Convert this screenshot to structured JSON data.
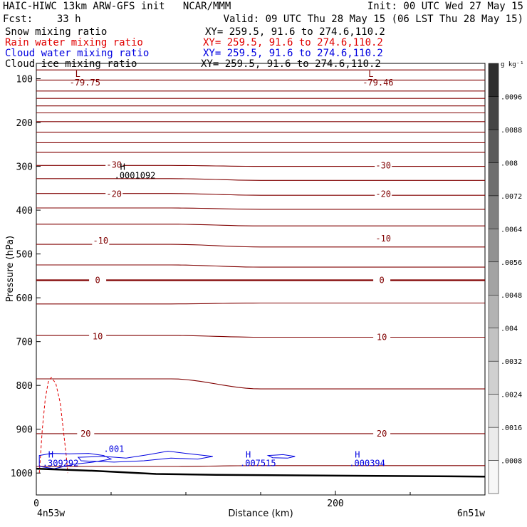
{
  "header": {
    "line1_left": "HAIC-HIWC 13km ARW-GFS init   NCAR/MMM",
    "line1_right": "Init: 00 UTC Wed 27 May 15",
    "line2_left": "Fcst:    33 h",
    "line2_right": "Valid: 09 UTC Thu 28 May 15 (06 LST Thu 28 May 15)",
    "fields": [
      {
        "name": "Snow mixing ratio",
        "xy": "XY= 259.5, 91.6 to 274.6,110.2",
        "color": "#000000"
      },
      {
        "name": "Rain water mixing ratio",
        "xy": "XY= 259.5, 91.6 to 274.6,110.2",
        "color": "#e00000"
      },
      {
        "name": "Cloud water mixing ratio",
        "xy": "XY= 259.5, 91.6 to 274.6,110.2",
        "color": "#0000e0"
      },
      {
        "name": "Cloud ice mixing ratio",
        "xy": "XY= 259.5, 91.6 to 274.6,110.2",
        "color": "#000000"
      }
    ]
  },
  "chart_data": {
    "type": "cross-section",
    "xlabel": "Distance (km)",
    "ylabel": "Pressure (hPa)",
    "x_endpoints": {
      "left": "4n53w",
      "right": "6n51w"
    },
    "xlim": [
      0,
      300
    ],
    "x_ticks": [
      0,
      200
    ],
    "ylim": [
      1050,
      65
    ],
    "y_ticks": [
      100,
      200,
      300,
      400,
      500,
      600,
      700,
      800,
      900,
      1000
    ],
    "colorbar": {
      "unit": "g kg⁻¹",
      "labels": [
        ".0008",
        ".0016",
        ".0024",
        ".0032",
        ".004",
        ".0048",
        ".0056",
        ".0064",
        ".0072",
        ".008",
        ".0088",
        ".0096"
      ],
      "colors": [
        "#f7f7f7",
        "#ebebeb",
        "#dedede",
        "#d0d0d0",
        "#c2c2c2",
        "#b3b3b3",
        "#a3a3a3",
        "#929292",
        "#808080",
        "#6e6e6e",
        "#5a5a5a",
        "#454545",
        "#2e2e2e"
      ]
    },
    "temperature_contours": [
      {
        "p": [
          80,
          80
        ]
      },
      {
        "p": [
          103,
          103
        ]
      },
      {
        "p": [
          128,
          128
        ]
      },
      {
        "p": [
          145,
          145
        ]
      },
      {
        "p": [
          162,
          162
        ]
      },
      {
        "p": [
          178,
          178
        ]
      },
      {
        "p": [
          198,
          198
        ]
      },
      {
        "p": [
          222,
          222
        ]
      },
      {
        "p": [
          246,
          246
        ]
      },
      {
        "p": [
          268,
          268
        ]
      },
      {
        "p": [
          298,
          300
        ]
      },
      {
        "p": [
          328,
          332
        ]
      },
      {
        "p": [
          362,
          366
        ]
      },
      {
        "p": [
          395,
          398
        ]
      },
      {
        "p": [
          432,
          436
        ]
      },
      {
        "p": [
          478,
          484
        ]
      },
      {
        "p": [
          525,
          530
        ]
      },
      {
        "p": [
          560,
          560
        ],
        "bold": true
      },
      {
        "p": [
          614,
          612
        ]
      },
      {
        "p": [
          686,
          690
        ]
      },
      {
        "p": [
          785,
          808
        ]
      },
      {
        "p": [
          910,
          910
        ]
      },
      {
        "p": [
          985,
          983
        ]
      }
    ],
    "temperature_labels": [
      {
        "x": 52,
        "p": 297,
        "text": "-30"
      },
      {
        "x": 232,
        "p": 298,
        "text": "-30"
      },
      {
        "x": 52,
        "p": 363,
        "text": "-20"
      },
      {
        "x": 232,
        "p": 363,
        "text": "-20"
      },
      {
        "x": 43,
        "p": 470,
        "text": "-10"
      },
      {
        "x": 232,
        "p": 465,
        "text": "-10"
      },
      {
        "x": 41,
        "p": 560,
        "text": "0"
      },
      {
        "x": 231,
        "p": 560,
        "text": "0"
      },
      {
        "x": 41,
        "p": 688,
        "text": "10"
      },
      {
        "x": 231,
        "p": 690,
        "text": "10"
      },
      {
        "x": 33,
        "p": 910,
        "text": "20"
      },
      {
        "x": 231,
        "p": 910,
        "text": "20"
      }
    ],
    "extrema": [
      {
        "type": "L",
        "x": 26,
        "p": 96,
        "value": "-79.75",
        "color": "#800000"
      },
      {
        "type": "L",
        "x": 222,
        "p": 96,
        "value": "-79.46",
        "color": "#800000"
      },
      {
        "type": "H",
        "x": 56,
        "p": 308,
        "value": ".0001092",
        "color": "#000000"
      },
      {
        "type": "H",
        "x": 8,
        "p": 965,
        "value": ".309292",
        "color": "#0000e0"
      },
      {
        "type": "H",
        "x": 140,
        "p": 965,
        "value": ".007515",
        "color": "#0000e0"
      },
      {
        "type": "H",
        "x": 213,
        "p": 965,
        "value": ".000394",
        "color": "#0000e0"
      }
    ],
    "cloud_water_label": ".001",
    "terrain": [
      [
        0,
        990
      ],
      [
        40,
        995
      ],
      [
        80,
        1002
      ],
      [
        120,
        1004
      ],
      [
        200,
        1006
      ],
      [
        300,
        1008
      ]
    ]
  }
}
